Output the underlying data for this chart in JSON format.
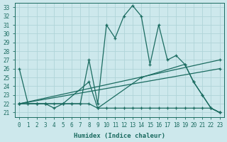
{
  "xlabel": "Humidex (Indice chaleur)",
  "background_color": "#cde8ec",
  "grid_color": "#b0d4d8",
  "line_color": "#1a6b60",
  "xlim": [
    -0.5,
    23.5
  ],
  "ylim": [
    20.5,
    33.5
  ],
  "xticks": [
    0,
    1,
    2,
    3,
    4,
    5,
    6,
    7,
    8,
    9,
    10,
    11,
    12,
    13,
    14,
    15,
    16,
    17,
    18,
    19,
    20,
    21,
    22,
    23
  ],
  "yticks": [
    21,
    22,
    23,
    24,
    25,
    26,
    27,
    28,
    29,
    30,
    31,
    32,
    33
  ],
  "lines": [
    {
      "x": [
        0,
        1,
        2,
        3,
        4,
        5,
        6,
        7,
        8,
        9,
        10,
        11,
        12,
        13,
        14,
        15,
        16,
        17,
        18,
        19,
        20,
        21,
        22,
        23
      ],
      "y": [
        26,
        22,
        22,
        22,
        22,
        22,
        22,
        22,
        27,
        22,
        31,
        29.5,
        32,
        33.2,
        32,
        26.5,
        31,
        27,
        27.5,
        26.5,
        24.5,
        23,
        21.5,
        21
      ]
    },
    {
      "x": [
        0,
        2,
        3,
        5,
        8,
        9,
        14,
        19,
        20,
        21,
        22,
        23
      ],
      "y": [
        22,
        22,
        22,
        22,
        24.5,
        21.5,
        25,
        26.5,
        24.5,
        23,
        21.5,
        21
      ]
    },
    {
      "x": [
        0,
        23
      ],
      "y": [
        22,
        27
      ]
    },
    {
      "x": [
        0,
        23
      ],
      "y": [
        22,
        26
      ]
    },
    {
      "x": [
        0,
        1,
        2,
        3,
        4,
        5,
        6,
        7,
        8,
        9,
        10,
        11,
        12,
        13,
        14,
        15,
        16,
        17,
        18,
        19,
        20,
        21,
        22,
        23
      ],
      "y": [
        22,
        22,
        22,
        22,
        21.5,
        22,
        22,
        22,
        22,
        21.5,
        21.5,
        21.5,
        21.5,
        21.5,
        21.5,
        21.5,
        21.5,
        21.5,
        21.5,
        21.5,
        21.5,
        21.5,
        21.5,
        21
      ]
    }
  ]
}
